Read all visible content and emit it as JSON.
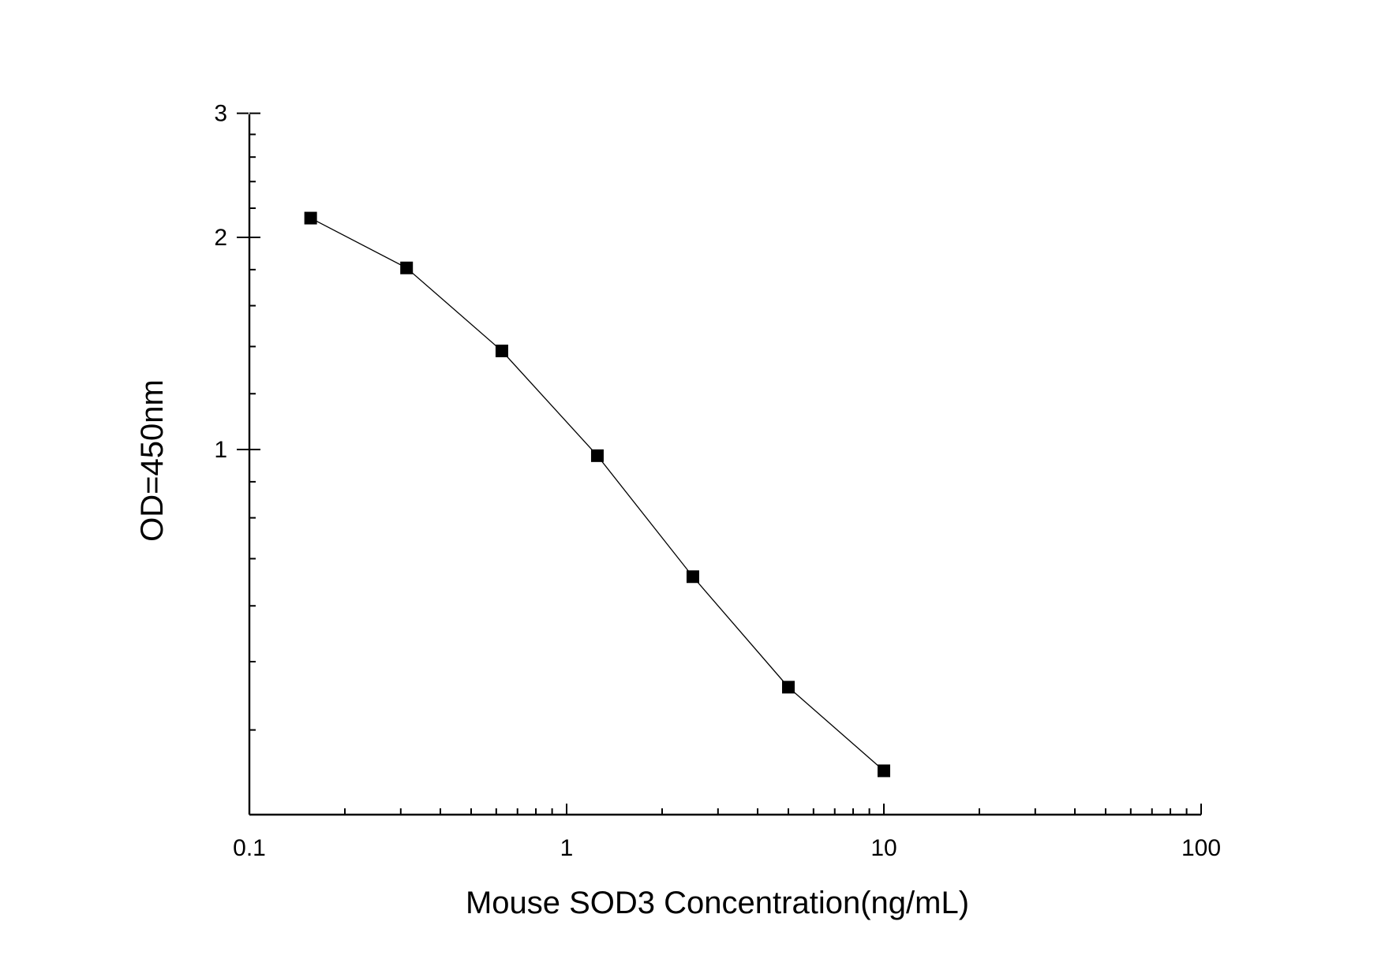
{
  "chart_data": {
    "type": "scatter",
    "title": "",
    "xlabel": "Mouse SOD3 Concentration(ng/mL)",
    "ylabel": "OD=450nm",
    "x_scale": "log",
    "y_scale": "log",
    "xlim": [
      0.1,
      100
    ],
    "ylim": [
      0.3,
      3
    ],
    "x_ticks": [
      "0.1",
      "1",
      "10",
      "100"
    ],
    "y_ticks": [
      "1",
      "2",
      "3"
    ],
    "grid": false,
    "legend": "none",
    "marker": "square",
    "connected": true,
    "color": "#000000",
    "series": [
      {
        "x": [
          0.156,
          0.313,
          0.625,
          1.25,
          2.5,
          5,
          10
        ],
        "y": [
          2.13,
          1.81,
          1.38,
          0.98,
          0.66,
          0.46,
          0.35
        ]
      }
    ]
  }
}
